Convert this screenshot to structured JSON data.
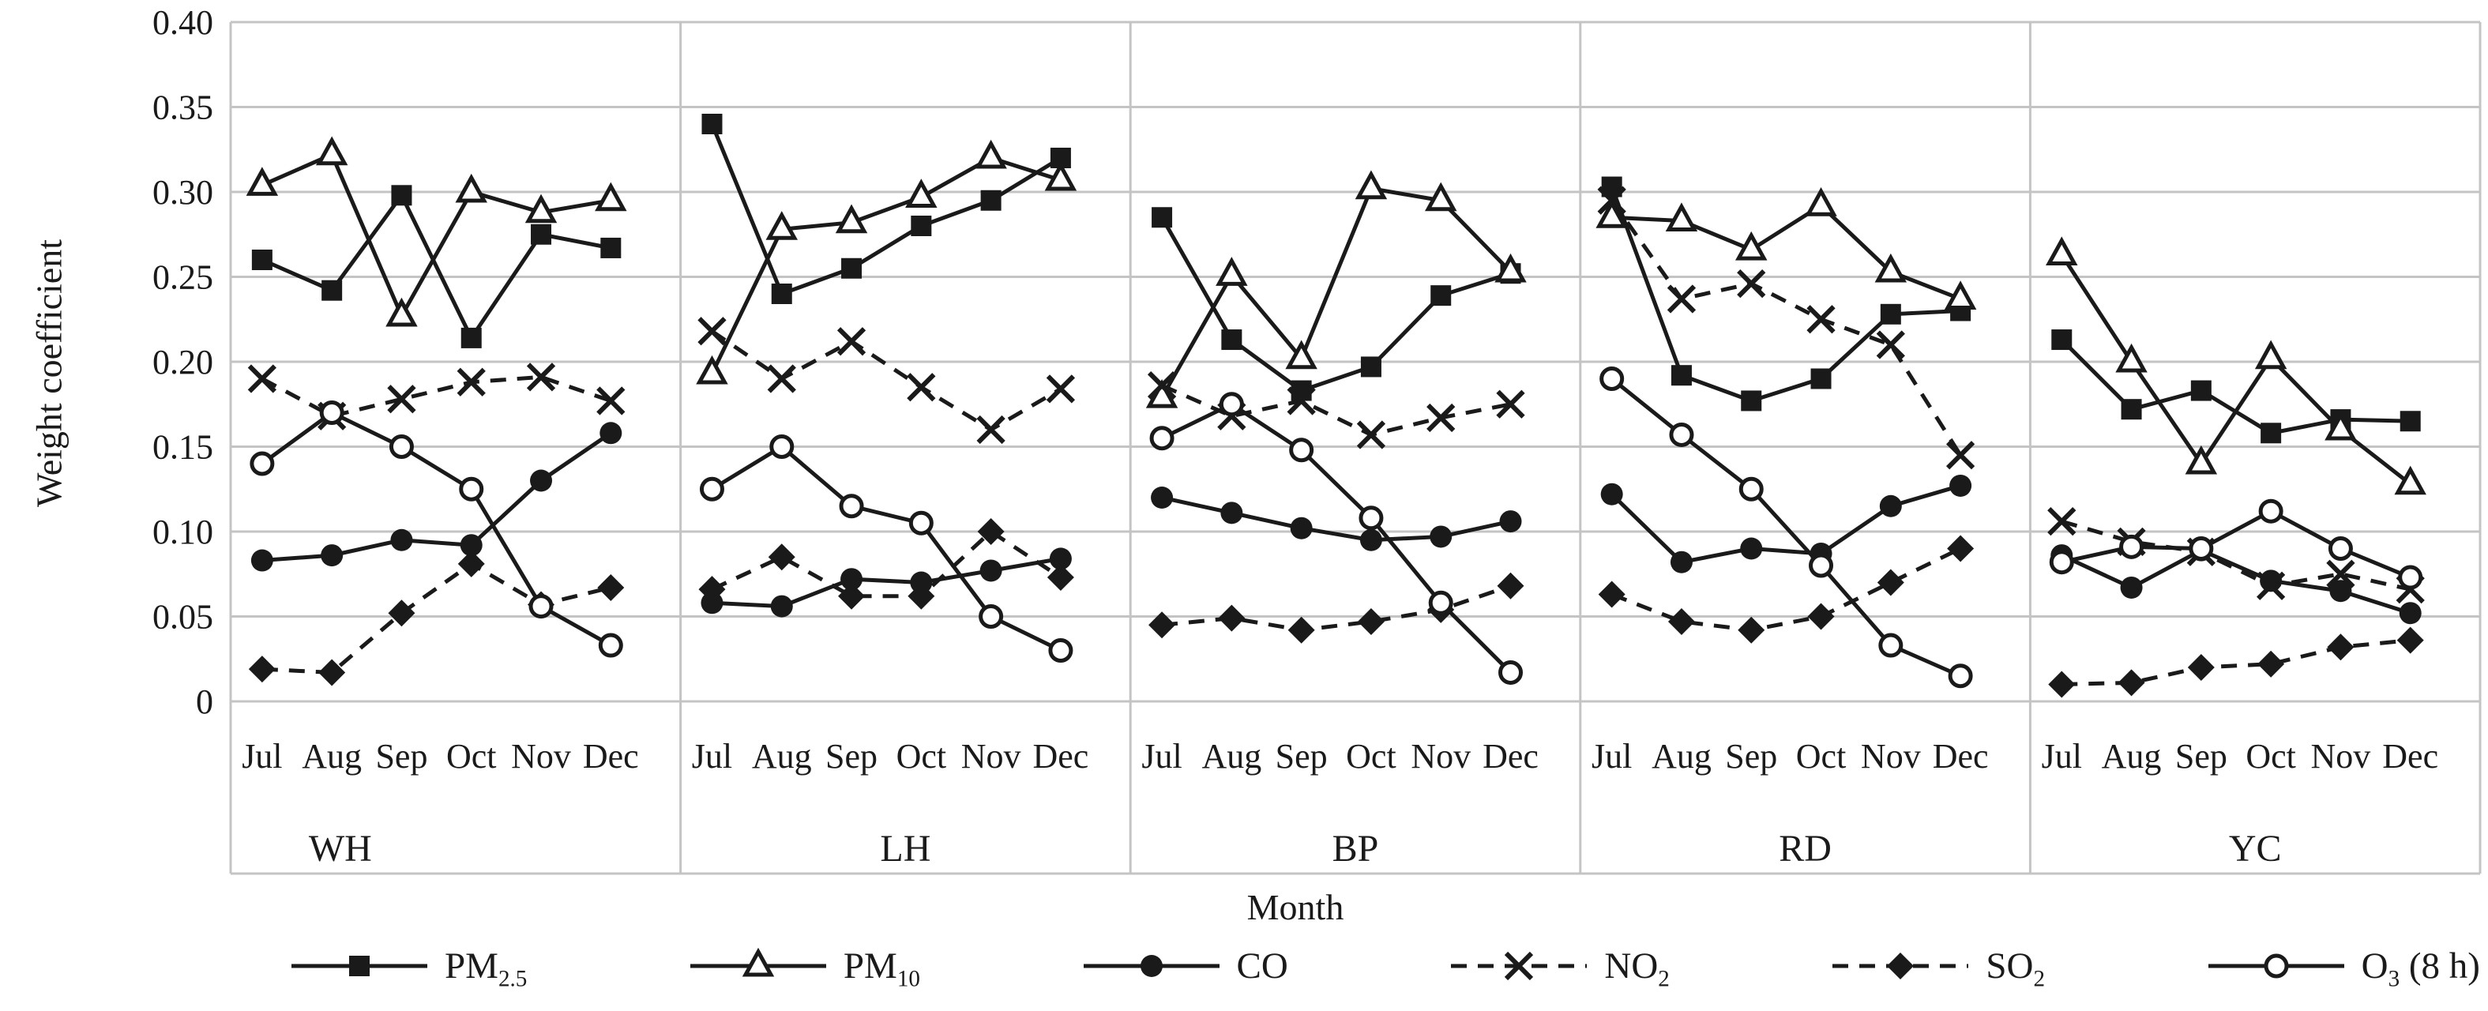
{
  "colors": {
    "line": "#1a1a1a",
    "grid": "#c4c4c4",
    "background": "#ffffff"
  },
  "chart_data": {
    "type": "line",
    "title": "",
    "xlabel": "Month",
    "ylabel": "Weight coefficient",
    "ylim": [
      0,
      0.4
    ],
    "ytick_step": 0.05,
    "yticks": [
      "0.40",
      "0.35",
      "0.30",
      "0.25",
      "0.20",
      "0.15",
      "0.10",
      "0.05",
      "0"
    ],
    "grid": "horizontal",
    "legend_position": "bottom",
    "categories": [
      "Jul",
      "Aug",
      "Sep",
      "Oct",
      "Nov",
      "Dec"
    ],
    "stations": [
      "WH",
      "LH",
      "BP",
      "RD",
      "YC"
    ],
    "series": [
      {
        "id": "pm25",
        "label_parts": [
          [
            "t",
            "PM"
          ],
          [
            "s",
            "2.5"
          ]
        ],
        "marker": "square",
        "dash": false,
        "data": {
          "WH": [
            0.26,
            0.242,
            0.298,
            0.214,
            0.275,
            0.267
          ],
          "LH": [
            0.34,
            0.24,
            0.255,
            0.28,
            0.295,
            0.32
          ],
          "BP": [
            0.285,
            0.213,
            0.183,
            0.197,
            0.239,
            0.252
          ],
          "RD": [
            0.303,
            0.192,
            0.177,
            0.19,
            0.228,
            0.23
          ],
          "YC": [
            0.213,
            0.172,
            0.183,
            0.158,
            0.166,
            0.165
          ]
        }
      },
      {
        "id": "pm10",
        "label_parts": [
          [
            "t",
            "PM"
          ],
          [
            "s",
            "10"
          ]
        ],
        "marker": "triangle-open",
        "dash": false,
        "data": {
          "WH": [
            0.304,
            0.322,
            0.227,
            0.3,
            0.288,
            0.295
          ],
          "LH": [
            0.193,
            0.278,
            0.282,
            0.297,
            0.32,
            0.307
          ],
          "BP": [
            0.179,
            0.251,
            0.202,
            0.302,
            0.295,
            0.253
          ],
          "RD": [
            0.285,
            0.283,
            0.266,
            0.292,
            0.253,
            0.237
          ],
          "YC": [
            0.263,
            0.2,
            0.14,
            0.202,
            0.16,
            0.128
          ]
        }
      },
      {
        "id": "co",
        "label_parts": [
          [
            "t",
            "CO"
          ]
        ],
        "marker": "circle",
        "dash": false,
        "data": {
          "WH": [
            0.083,
            0.086,
            0.095,
            0.092,
            0.13,
            0.158
          ],
          "LH": [
            0.058,
            0.056,
            0.072,
            0.07,
            0.077,
            0.084
          ],
          "BP": [
            0.12,
            0.111,
            0.102,
            0.095,
            0.097,
            0.106
          ],
          "RD": [
            0.122,
            0.082,
            0.09,
            0.087,
            0.115,
            0.127
          ],
          "YC": [
            0.086,
            0.067,
            0.089,
            0.071,
            0.065,
            0.052
          ]
        }
      },
      {
        "id": "no2",
        "label_parts": [
          [
            "t",
            "NO"
          ],
          [
            "s",
            "2"
          ]
        ],
        "marker": "x",
        "dash": true,
        "data": {
          "WH": [
            0.19,
            0.168,
            0.178,
            0.188,
            0.191,
            0.177
          ],
          "LH": [
            0.218,
            0.19,
            0.212,
            0.185,
            0.16,
            0.184
          ],
          "BP": [
            0.186,
            0.168,
            0.177,
            0.157,
            0.167,
            0.175
          ],
          "RD": [
            0.295,
            0.237,
            0.246,
            0.225,
            0.21,
            0.145
          ],
          "YC": [
            0.106,
            0.094,
            0.088,
            0.068,
            0.075,
            0.066
          ]
        }
      },
      {
        "id": "so2",
        "label_parts": [
          [
            "t",
            "SO"
          ],
          [
            "s",
            "2"
          ]
        ],
        "marker": "diamond",
        "dash": true,
        "data": {
          "WH": [
            0.019,
            0.017,
            0.052,
            0.081,
            0.057,
            0.067
          ],
          "LH": [
            0.066,
            0.085,
            0.062,
            0.062,
            0.1,
            0.073
          ],
          "BP": [
            0.045,
            0.049,
            0.042,
            0.047,
            0.054,
            0.068
          ],
          "RD": [
            0.063,
            0.047,
            0.042,
            0.05,
            0.07,
            0.09
          ],
          "YC": [
            0.01,
            0.011,
            0.02,
            0.022,
            0.032,
            0.036
          ]
        }
      },
      {
        "id": "o3",
        "label_parts": [
          [
            "t",
            "O"
          ],
          [
            "s",
            "3"
          ],
          [
            "t",
            " (8 h)"
          ]
        ],
        "marker": "circle-open",
        "dash": false,
        "data": {
          "WH": [
            0.14,
            0.17,
            0.15,
            0.125,
            0.056,
            0.033
          ],
          "LH": [
            0.125,
            0.15,
            0.115,
            0.105,
            0.05,
            0.03
          ],
          "BP": [
            0.155,
            0.175,
            0.148,
            0.108,
            0.058,
            0.017
          ],
          "RD": [
            0.19,
            0.157,
            0.125,
            0.08,
            0.033,
            0.015
          ],
          "YC": [
            0.082,
            0.091,
            0.09,
            0.112,
            0.09,
            0.073
          ]
        }
      }
    ]
  }
}
